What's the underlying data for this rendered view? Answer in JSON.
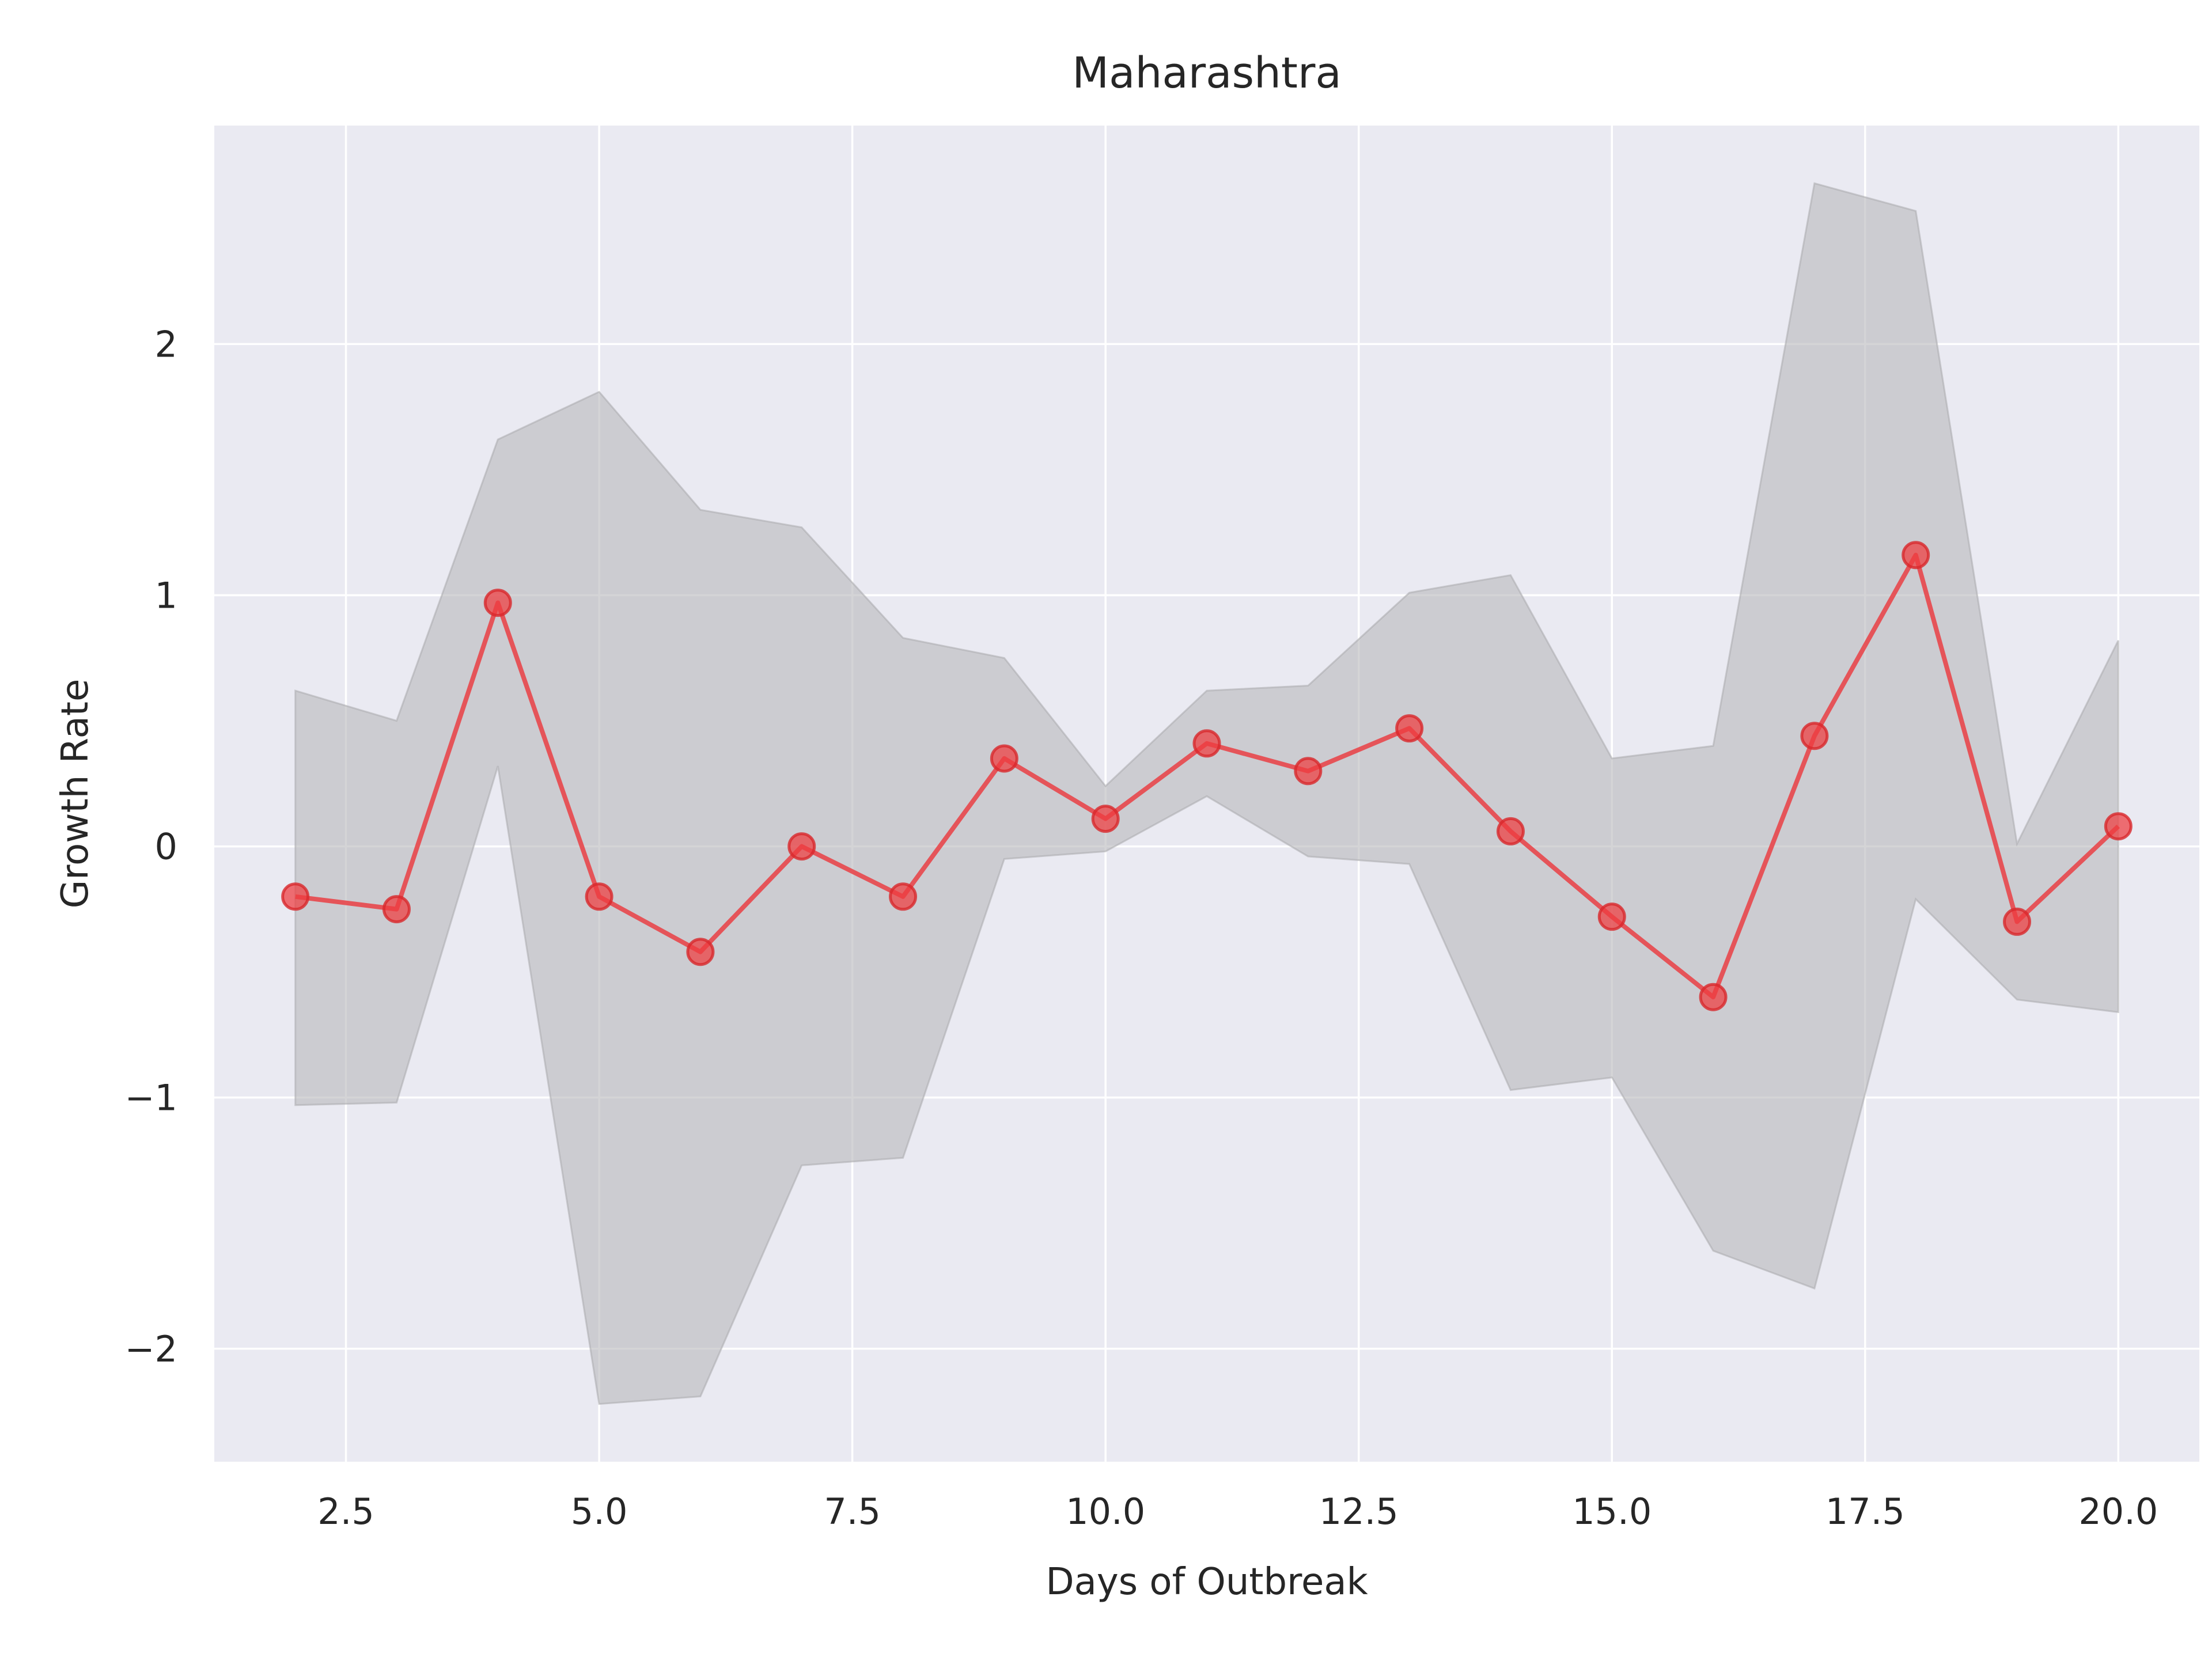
{
  "chart_data": {
    "type": "line",
    "title": "Maharashtra",
    "xlabel": "Days of Outbreak",
    "ylabel": "Growth Rate",
    "xlim": [
      1.2,
      20.8
    ],
    "ylim": [
      -2.45,
      2.87
    ],
    "xticks": [
      2.5,
      5.0,
      7.5,
      10.0,
      12.5,
      15.0,
      17.5,
      20.0
    ],
    "xtick_labels": [
      "2.5",
      "5.0",
      "7.5",
      "10.0",
      "12.5",
      "15.0",
      "17.5",
      "20.0"
    ],
    "yticks": [
      -2,
      -1,
      0,
      1,
      2
    ],
    "ytick_labels": [
      "−2",
      "−1",
      "0",
      "1",
      "2"
    ],
    "grid": true,
    "colors": {
      "background": "#eaeaf2",
      "grid": "#ffffff",
      "line": "#e8474b",
      "marker": "#ef3b3f",
      "band": "#b9b9bd",
      "band_edge": "#a9a9ad"
    },
    "series": [
      {
        "x": [
          2,
          3,
          4,
          5,
          6,
          7,
          8,
          9,
          10,
          11,
          12,
          13,
          14,
          15,
          16,
          17,
          18,
          19,
          20
        ],
        "values": [
          -0.2,
          -0.25,
          0.97,
          -0.2,
          -0.42,
          0.0,
          -0.2,
          0.35,
          0.11,
          0.41,
          0.3,
          0.47,
          0.06,
          -0.28,
          -0.6,
          0.44,
          1.16,
          -0.3,
          0.08
        ]
      }
    ],
    "band": {
      "x": [
        2,
        3,
        4,
        5,
        6,
        7,
        8,
        9,
        10,
        11,
        12,
        13,
        14,
        15,
        16,
        17,
        18,
        19,
        20
      ],
      "lower": [
        -1.03,
        -1.02,
        0.32,
        -2.22,
        -2.19,
        -1.27,
        -1.24,
        -0.05,
        -0.02,
        0.2,
        -0.04,
        -0.07,
        -0.97,
        -0.92,
        -1.61,
        -1.76,
        -0.21,
        -0.61,
        -0.66
      ],
      "upper": [
        0.62,
        0.5,
        1.62,
        1.81,
        1.34,
        1.27,
        0.83,
        0.75,
        0.24,
        0.62,
        0.64,
        1.01,
        1.08,
        0.35,
        0.4,
        2.64,
        2.53,
        0.01,
        0.82
      ]
    }
  }
}
